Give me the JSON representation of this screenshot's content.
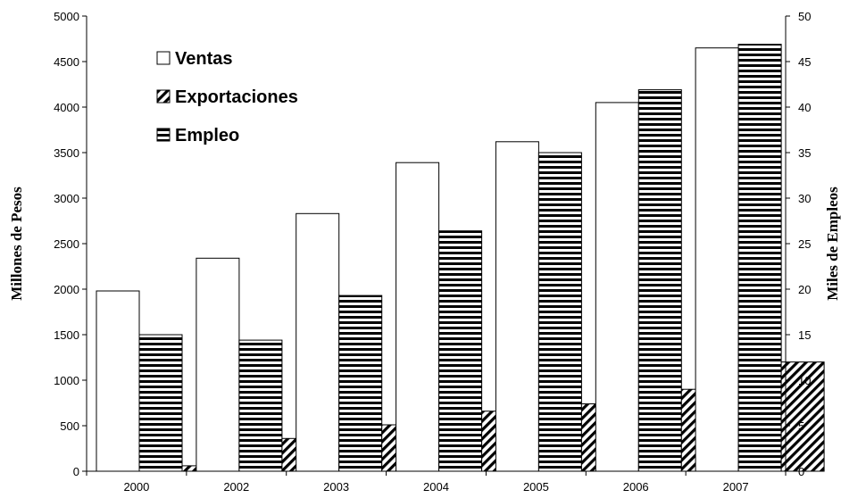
{
  "chart_data": {
    "type": "bar",
    "categories": [
      "2000",
      "2002",
      "2003",
      "2004",
      "2005",
      "2006",
      "2007"
    ],
    "series": [
      {
        "name": "Ventas",
        "axis": "left",
        "pattern": "blank",
        "values": [
          1980,
          2340,
          2830,
          3390,
          3620,
          4050,
          4650
        ]
      },
      {
        "name": "Empleo",
        "axis": "right",
        "pattern": "horizontal-stripes",
        "values": [
          15.0,
          14.4,
          19.3,
          26.4,
          35.0,
          41.9,
          46.9
        ]
      },
      {
        "name": "Exportaciones",
        "axis": "left",
        "pattern": "diagonal-stripes",
        "values": [
          60,
          360,
          510,
          660,
          740,
          900,
          1200
        ]
      }
    ],
    "legend_order": [
      "Ventas",
      "Exportaciones",
      "Empleo"
    ],
    "legend_position": "top-left",
    "ylabel": "Millones de Pesos",
    "ylabel_right": "Miles de Empleos",
    "ylim": [
      0,
      5000
    ],
    "ylim_right": [
      0,
      50
    ],
    "yticks": [
      0,
      500,
      1000,
      1500,
      2000,
      2500,
      3000,
      3500,
      4000,
      4500,
      5000
    ],
    "yticks_right": [
      0,
      5,
      10,
      15,
      20,
      25,
      30,
      35,
      40,
      45,
      50
    ],
    "grid": false,
    "colors": {
      "stroke": "#000000",
      "fill": "#ffffff"
    }
  }
}
